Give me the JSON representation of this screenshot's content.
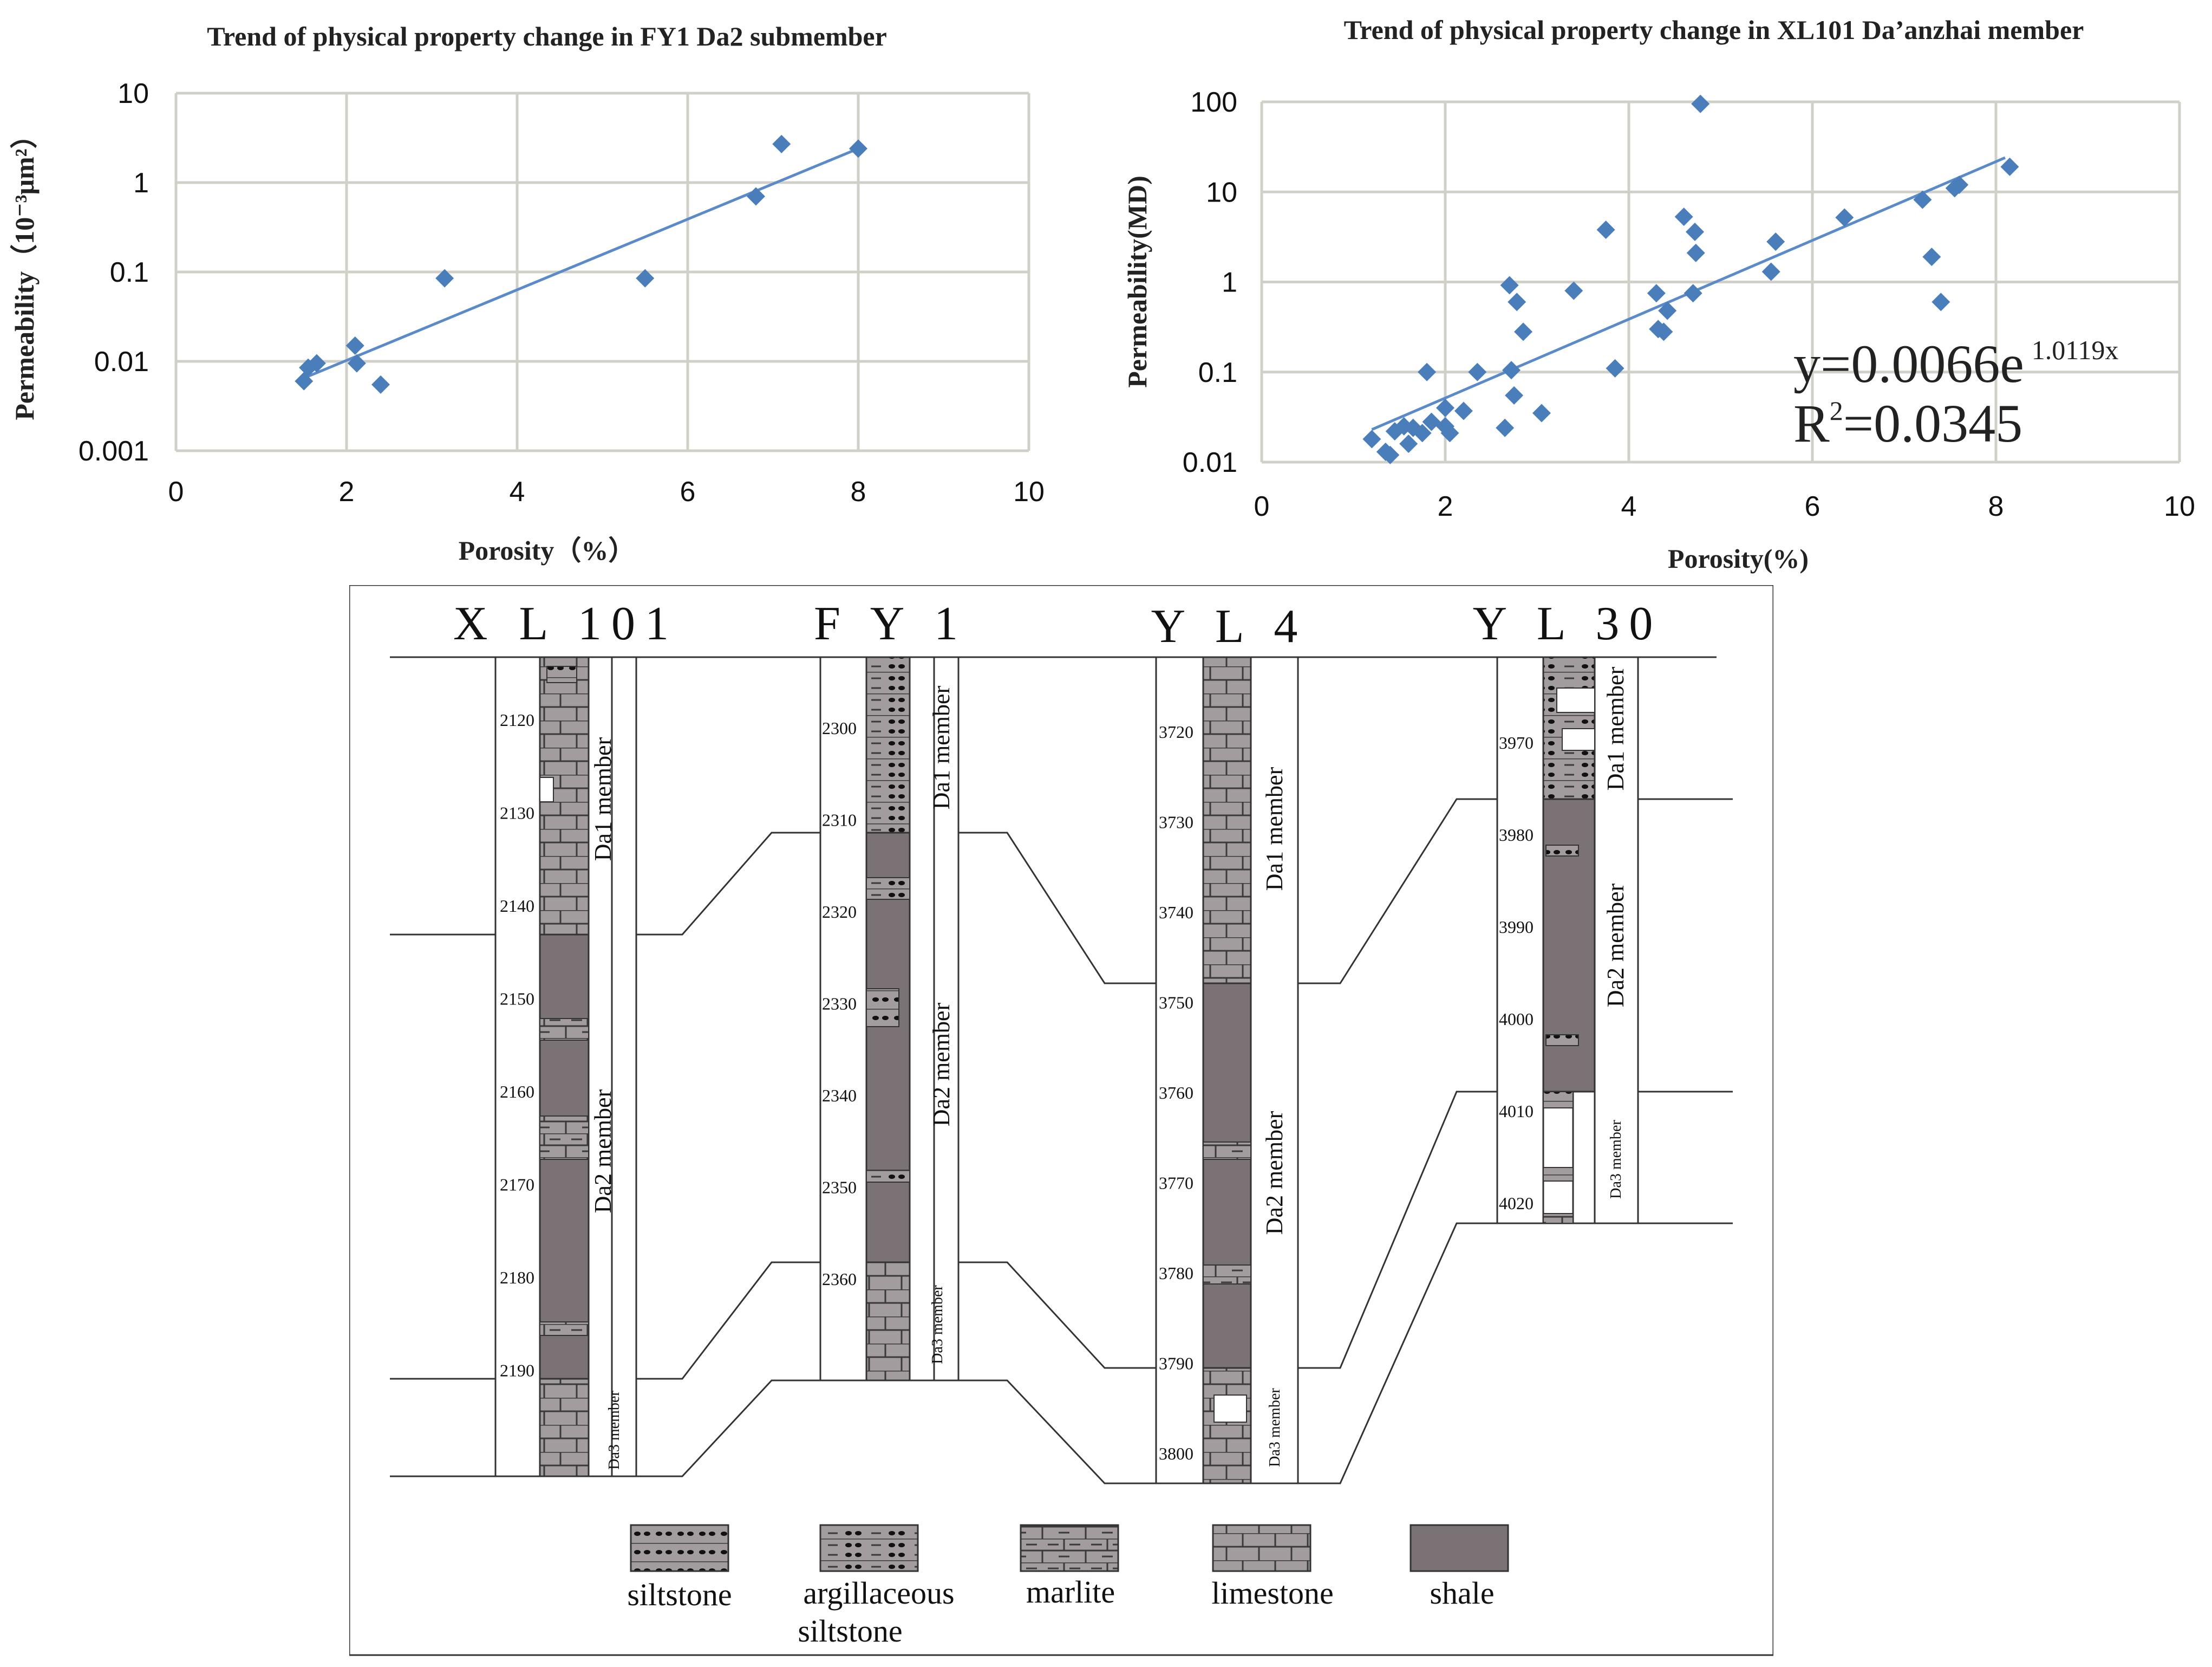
{
  "chart_data": [
    {
      "type": "scatter",
      "title": "Trend of physical property change in FY1 Da2 submember",
      "xlabel": "Porosity（%）",
      "ylabel": "Permeability（10⁻³μm²）",
      "x_scale": "linear",
      "y_scale": "log",
      "xlim": [
        0,
        10
      ],
      "ylim": [
        0.001,
        10
      ],
      "x_ticks": [
        0,
        2,
        4,
        6,
        8,
        10
      ],
      "y_ticks": [
        0.001,
        0.01,
        0.1,
        1,
        10
      ],
      "y_tick_labels": [
        "0.001",
        "0.01",
        "0.1",
        "1",
        "10"
      ],
      "grid": true,
      "points": [
        {
          "x": 1.5,
          "y": 0.006
        },
        {
          "x": 1.55,
          "y": 0.0085
        },
        {
          "x": 1.65,
          "y": 0.0095
        },
        {
          "x": 2.1,
          "y": 0.015
        },
        {
          "x": 2.12,
          "y": 0.0095
        },
        {
          "x": 2.4,
          "y": 0.0055
        },
        {
          "x": 3.15,
          "y": 0.085
        },
        {
          "x": 5.5,
          "y": 0.085
        },
        {
          "x": 6.8,
          "y": 0.7
        },
        {
          "x": 7.1,
          "y": 2.7
        },
        {
          "x": 8.0,
          "y": 2.4
        }
      ],
      "trendline": {
        "x": [
          1.5,
          8.0
        ],
        "y": [
          0.0065,
          2.4
        ]
      }
    },
    {
      "type": "scatter",
      "title": "Trend of physical property change in XL101 Da’anzhai member",
      "xlabel": "Porosity(%)",
      "ylabel": "Permeability(MD)",
      "x_scale": "linear",
      "y_scale": "log",
      "xlim": [
        0,
        10
      ],
      "ylim": [
        0.01,
        100
      ],
      "x_ticks": [
        0,
        2,
        4,
        6,
        8,
        10
      ],
      "y_ticks": [
        0.01,
        0.1,
        1,
        10,
        100
      ],
      "y_tick_labels": [
        "0.01",
        "0.1",
        "1",
        "10",
        "100"
      ],
      "grid": true,
      "points": [
        {
          "x": 1.2,
          "y": 0.018
        },
        {
          "x": 1.35,
          "y": 0.013
        },
        {
          "x": 1.4,
          "y": 0.012
        },
        {
          "x": 1.45,
          "y": 0.022
        },
        {
          "x": 1.55,
          "y": 0.025
        },
        {
          "x": 1.6,
          "y": 0.016
        },
        {
          "x": 1.65,
          "y": 0.024
        },
        {
          "x": 1.75,
          "y": 0.021
        },
        {
          "x": 1.8,
          "y": 0.1
        },
        {
          "x": 1.85,
          "y": 0.028
        },
        {
          "x": 2.0,
          "y": 0.04
        },
        {
          "x": 2.0,
          "y": 0.025
        },
        {
          "x": 2.05,
          "y": 0.021
        },
        {
          "x": 2.2,
          "y": 0.037
        },
        {
          "x": 2.35,
          "y": 0.1
        },
        {
          "x": 2.65,
          "y": 0.024
        },
        {
          "x": 2.7,
          "y": 0.92
        },
        {
          "x": 2.72,
          "y": 0.105
        },
        {
          "x": 2.75,
          "y": 0.055
        },
        {
          "x": 2.78,
          "y": 0.6
        },
        {
          "x": 2.85,
          "y": 0.28
        },
        {
          "x": 3.05,
          "y": 0.035
        },
        {
          "x": 3.4,
          "y": 0.8
        },
        {
          "x": 3.75,
          "y": 3.8
        },
        {
          "x": 3.85,
          "y": 0.11
        },
        {
          "x": 4.3,
          "y": 0.75
        },
        {
          "x": 4.32,
          "y": 0.3
        },
        {
          "x": 4.38,
          "y": 0.28
        },
        {
          "x": 4.42,
          "y": 0.48
        },
        {
          "x": 4.6,
          "y": 5.3
        },
        {
          "x": 4.72,
          "y": 3.6
        },
        {
          "x": 4.73,
          "y": 2.1
        },
        {
          "x": 4.7,
          "y": 0.75
        },
        {
          "x": 4.78,
          "y": 95
        },
        {
          "x": 5.55,
          "y": 1.3
        },
        {
          "x": 5.6,
          "y": 2.8
        },
        {
          "x": 6.35,
          "y": 5.2
        },
        {
          "x": 7.2,
          "y": 8.2
        },
        {
          "x": 7.3,
          "y": 1.9
        },
        {
          "x": 7.4,
          "y": 0.6
        },
        {
          "x": 7.55,
          "y": 11
        },
        {
          "x": 7.6,
          "y": 12
        },
        {
          "x": 8.15,
          "y": 19
        }
      ],
      "trendline": {
        "x": [
          1.2,
          8.1
        ],
        "y": [
          0.023,
          24
        ]
      },
      "equation": "y=0.0066e",
      "equation_exponent": "1.0119x",
      "r2_label": "R",
      "r2_sup": "2",
      "r2_value": "=0.0345"
    }
  ],
  "section": {
    "wells": [
      {
        "name": "X L 101",
        "depths": [
          "2120",
          "2130",
          "2140",
          "2150",
          "2160",
          "2170",
          "2180",
          "2190"
        ],
        "members": [
          "Da1 member",
          "Da2 member",
          "Da3 member"
        ]
      },
      {
        "name": "F Y  1",
        "depths": [
          "2300",
          "2310",
          "2320",
          "2330",
          "2340",
          "2350",
          "2360"
        ],
        "members": [
          "Da1 member",
          "Da2 member",
          "Da3 member"
        ]
      },
      {
        "name": "Y L 4",
        "depths": [
          "3720",
          "3730",
          "3740",
          "3750",
          "3760",
          "3770",
          "3780",
          "3790",
          "3800"
        ],
        "members": [
          "Da1 member",
          "Da2 member",
          "Da3 member"
        ]
      },
      {
        "name": "Y L 30",
        "depths": [
          "3970",
          "3980",
          "3990",
          "4000",
          "4010",
          "4020"
        ],
        "members": [
          "Da1 member",
          "Da2 member",
          "Da3 member"
        ]
      }
    ],
    "legend": [
      {
        "label": "siltstone",
        "label2": ""
      },
      {
        "label": "argillaceous",
        "label2": "siltstone"
      },
      {
        "label": "marlite",
        "label2": ""
      },
      {
        "label": "limestone",
        "label2": ""
      },
      {
        "label": "shale",
        "label2": ""
      }
    ],
    "colors": {
      "shale": "#7a7274",
      "rock": "#a29c9e",
      "line": "#333333"
    }
  }
}
